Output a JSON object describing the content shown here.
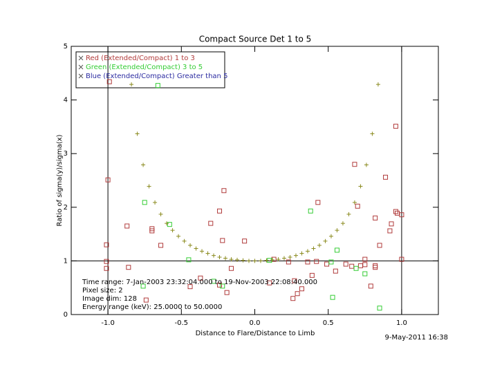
{
  "chart_data": {
    "type": "scatter",
    "title": "Compact Source Det 1 to 5",
    "xlabel": "Distance to Flare/Distance to Limb",
    "ylabel": "Ratio of sigma(y)/sigma(x)",
    "xlim": [
      -1.25,
      1.25
    ],
    "ylim": [
      0,
      5
    ],
    "xticks": [
      {
        "value": -1,
        "label": "-1.0"
      },
      -0.5,
      {
        "value": 0,
        "label": "0.0"
      },
      0.5,
      {
        "value": 1,
        "label": "1.0"
      }
    ],
    "yticks": [
      0,
      1,
      2,
      3,
      4,
      5
    ],
    "vlines": [
      -1,
      1
    ],
    "hlines": [
      1
    ],
    "series": [
      {
        "name": "Red (Extended/Compact) 1 to 3",
        "color": "#b03a3a",
        "marker": "square",
        "x": [
          -0.99,
          -1.0,
          -1.01,
          -1.01,
          -1.01,
          -0.87,
          -0.86,
          -0.7,
          -0.7,
          -0.64,
          -0.74,
          -0.3,
          -0.24,
          -0.21,
          -0.22,
          -0.07,
          -0.44,
          -0.19,
          -0.24,
          -0.37,
          -0.16,
          0.1,
          0.13,
          0.23,
          0.26,
          0.29,
          0.32,
          0.27,
          0.36,
          0.43,
          0.42,
          0.39,
          0.55,
          0.49,
          0.62,
          0.66,
          0.68,
          0.7,
          0.72,
          0.75,
          0.75,
          0.79,
          0.82,
          0.82,
          0.82,
          0.85,
          0.89,
          0.92,
          0.93,
          0.96,
          0.97,
          0.96,
          1.0,
          1.0
        ],
        "y": [
          4.34,
          2.51,
          1.3,
          0.99,
          0.86,
          1.65,
          0.88,
          1.6,
          1.56,
          1.29,
          0.27,
          1.7,
          1.93,
          2.31,
          1.38,
          1.37,
          0.52,
          0.41,
          0.55,
          0.68,
          0.86,
          0.59,
          1.03,
          0.98,
          0.3,
          0.39,
          0.48,
          0.63,
          0.98,
          2.09,
          0.99,
          0.73,
          0.81,
          0.94,
          0.94,
          0.9,
          2.8,
          2.02,
          0.91,
          1.03,
          0.93,
          0.53,
          0.91,
          0.88,
          1.8,
          1.29,
          2.56,
          1.56,
          1.69,
          1.92,
          1.89,
          3.51,
          1.86,
          1.03
        ]
      },
      {
        "name": "Green (Extended/Compact) 3 to 5",
        "color": "#33cc33",
        "marker": "square",
        "x": [
          -0.66,
          -0.75,
          -0.58,
          -0.45,
          -0.76,
          -0.28,
          -0.22,
          0.1,
          0.38,
          0.52,
          0.56,
          0.53,
          0.69,
          0.75,
          0.85
        ],
        "y": [
          4.27,
          2.09,
          1.68,
          1.02,
          0.53,
          0.62,
          0.53,
          1.01,
          1.93,
          0.98,
          1.2,
          0.32,
          0.86,
          0.76,
          0.12
        ]
      },
      {
        "name": "Blue (Extended/Compact) Greater than 5",
        "color": "#2a2aa0",
        "marker": "square",
        "x": [],
        "y": []
      },
      {
        "color": "#8a8a1e",
        "marker": "plus",
        "x": [
          -0.84,
          -0.8,
          -0.76,
          -0.72,
          -0.68,
          -0.64,
          -0.6,
          -0.56,
          -0.52,
          -0.48,
          -0.44,
          -0.4,
          -0.36,
          -0.32,
          -0.28,
          -0.24,
          -0.2,
          -0.16,
          -0.12,
          -0.08,
          -0.04,
          0,
          0.04,
          0.08,
          0.12,
          0.16,
          0.2,
          0.24,
          0.28,
          0.32,
          0.36,
          0.4,
          0.44,
          0.48,
          0.52,
          0.56,
          0.6,
          0.64,
          0.68,
          0.72,
          0.76,
          0.8,
          0.84
        ],
        "y": [
          4.29,
          3.37,
          2.79,
          2.39,
          2.09,
          1.87,
          1.7,
          1.57,
          1.46,
          1.37,
          1.29,
          1.23,
          1.18,
          1.14,
          1.1,
          1.07,
          1.05,
          1.03,
          1.02,
          1.01,
          1.0,
          1.0,
          1.0,
          1.01,
          1.02,
          1.03,
          1.05,
          1.07,
          1.1,
          1.14,
          1.18,
          1.23,
          1.29,
          1.37,
          1.46,
          1.57,
          1.7,
          1.87,
          2.09,
          2.39,
          2.79,
          3.37,
          4.29
        ]
      }
    ],
    "annotations": [
      "Time range:  7-Jan-2003 23:32:04.000 to 19-Nov-2003 22:08:40.000",
      "Pixel size: 2",
      "Image dim: 128",
      "Energy range (keV): 25.0000 to 50.0000"
    ],
    "date": "9-May-2011 16:38"
  }
}
